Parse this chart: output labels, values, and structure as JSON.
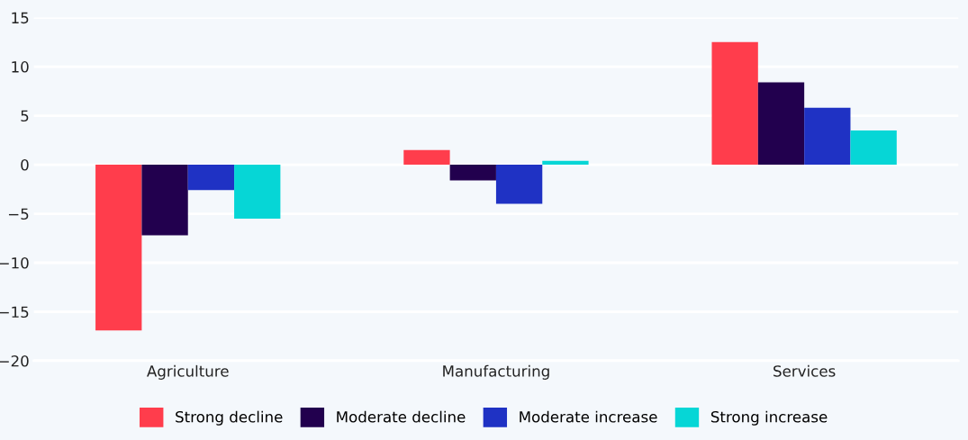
{
  "chart_data": {
    "type": "bar",
    "categories": [
      "Agriculture",
      "Manufacturing",
      "Services"
    ],
    "series": [
      {
        "name": "Strong decline",
        "color": "#ff3d4c",
        "values": [
          -16.9,
          1.5,
          12.5
        ]
      },
      {
        "name": "Moderate decline",
        "color": "#22004e",
        "values": [
          -7.2,
          -1.6,
          8.4
        ]
      },
      {
        "name": "Moderate increase",
        "color": "#1f32c4",
        "values": [
          -2.6,
          -4.0,
          5.8
        ]
      },
      {
        "name": "Strong increase",
        "color": "#06d6d6",
        "values": [
          -5.5,
          0.4,
          3.5
        ]
      }
    ],
    "ylim": [
      -20,
      15
    ],
    "yticks": [
      {
        "value": -20,
        "label": "−20"
      },
      {
        "value": -15,
        "label": "−15"
      },
      {
        "value": -10,
        "label": "−10"
      },
      {
        "value": -5,
        "label": "−5"
      },
      0,
      5,
      10,
      15
    ],
    "grid": "y",
    "legend": "bottom"
  }
}
